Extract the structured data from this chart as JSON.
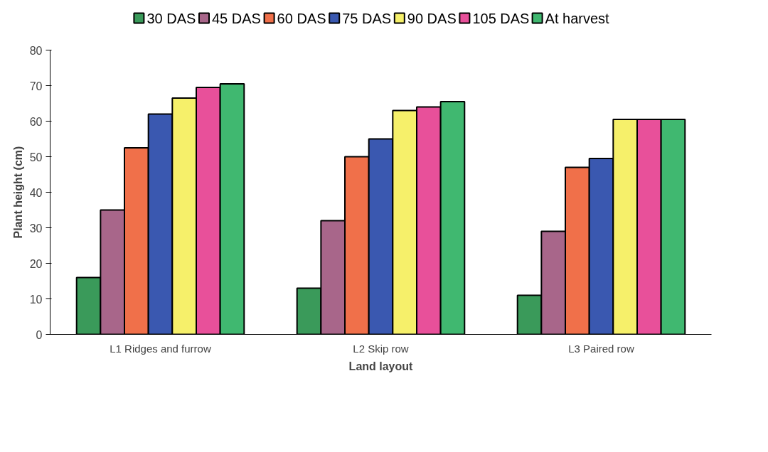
{
  "chart_data": {
    "type": "bar",
    "xlabel": "Land layout",
    "ylabel": "Plant height (cm)",
    "categories": [
      "L1 Ridges and furrow",
      "L2 Skip row",
      "L3 Paired row"
    ],
    "series": [
      {
        "name": "30 DAS",
        "color": "#3a9a5a",
        "values": [
          16,
          13,
          11
        ]
      },
      {
        "name": "45 DAS",
        "color": "#a8668a",
        "values": [
          35,
          32,
          29
        ]
      },
      {
        "name": "60 DAS",
        "color": "#f0704a",
        "values": [
          52.5,
          50,
          47
        ]
      },
      {
        "name": "75 DAS",
        "color": "#3a58b0",
        "values": [
          62,
          55,
          49.5
        ]
      },
      {
        "name": "90 DAS",
        "color": "#f6f06a",
        "values": [
          66.5,
          63,
          60.5
        ]
      },
      {
        "name": "105 DAS",
        "color": "#e8509a",
        "values": [
          69.5,
          64,
          60.5
        ]
      },
      {
        "name": "At harvest",
        "color": "#40b870",
        "values": [
          70.5,
          65.5,
          60.5
        ]
      }
    ],
    "ylim": [
      0,
      80
    ],
    "yticks": [
      0,
      10,
      20,
      30,
      40,
      50,
      60,
      70,
      80
    ],
    "grid": false,
    "legend": "top"
  }
}
